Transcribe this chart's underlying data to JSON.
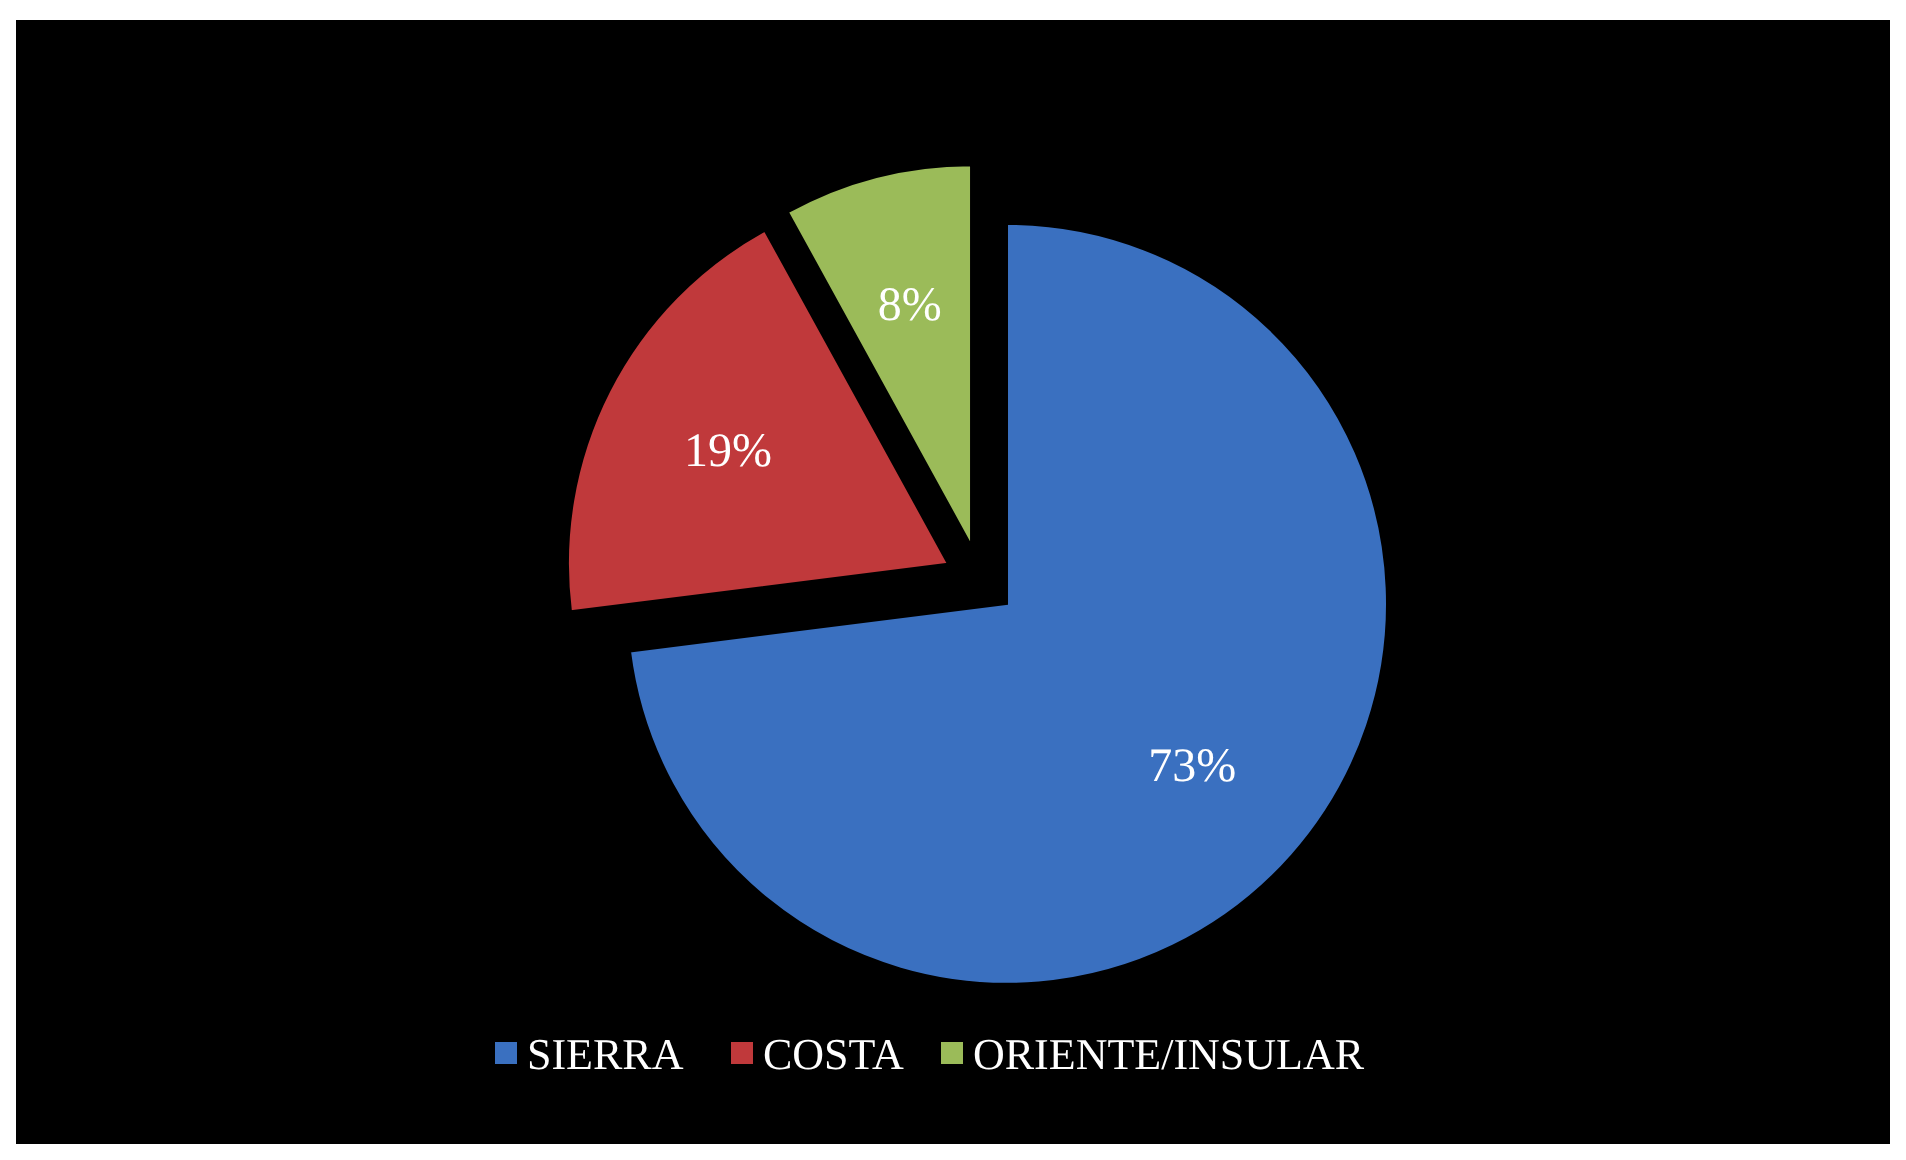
{
  "chart_data": {
    "type": "pie",
    "categories": [
      "SIERRA",
      "COSTA",
      "ORIENTE/INSULAR"
    ],
    "values": [
      73,
      19,
      8
    ],
    "colors": [
      "#3a70c0",
      "#c0393b",
      "#9bbb59"
    ],
    "value_labels": [
      "73%",
      "19%",
      "8%"
    ],
    "legend": "bottom"
  }
}
